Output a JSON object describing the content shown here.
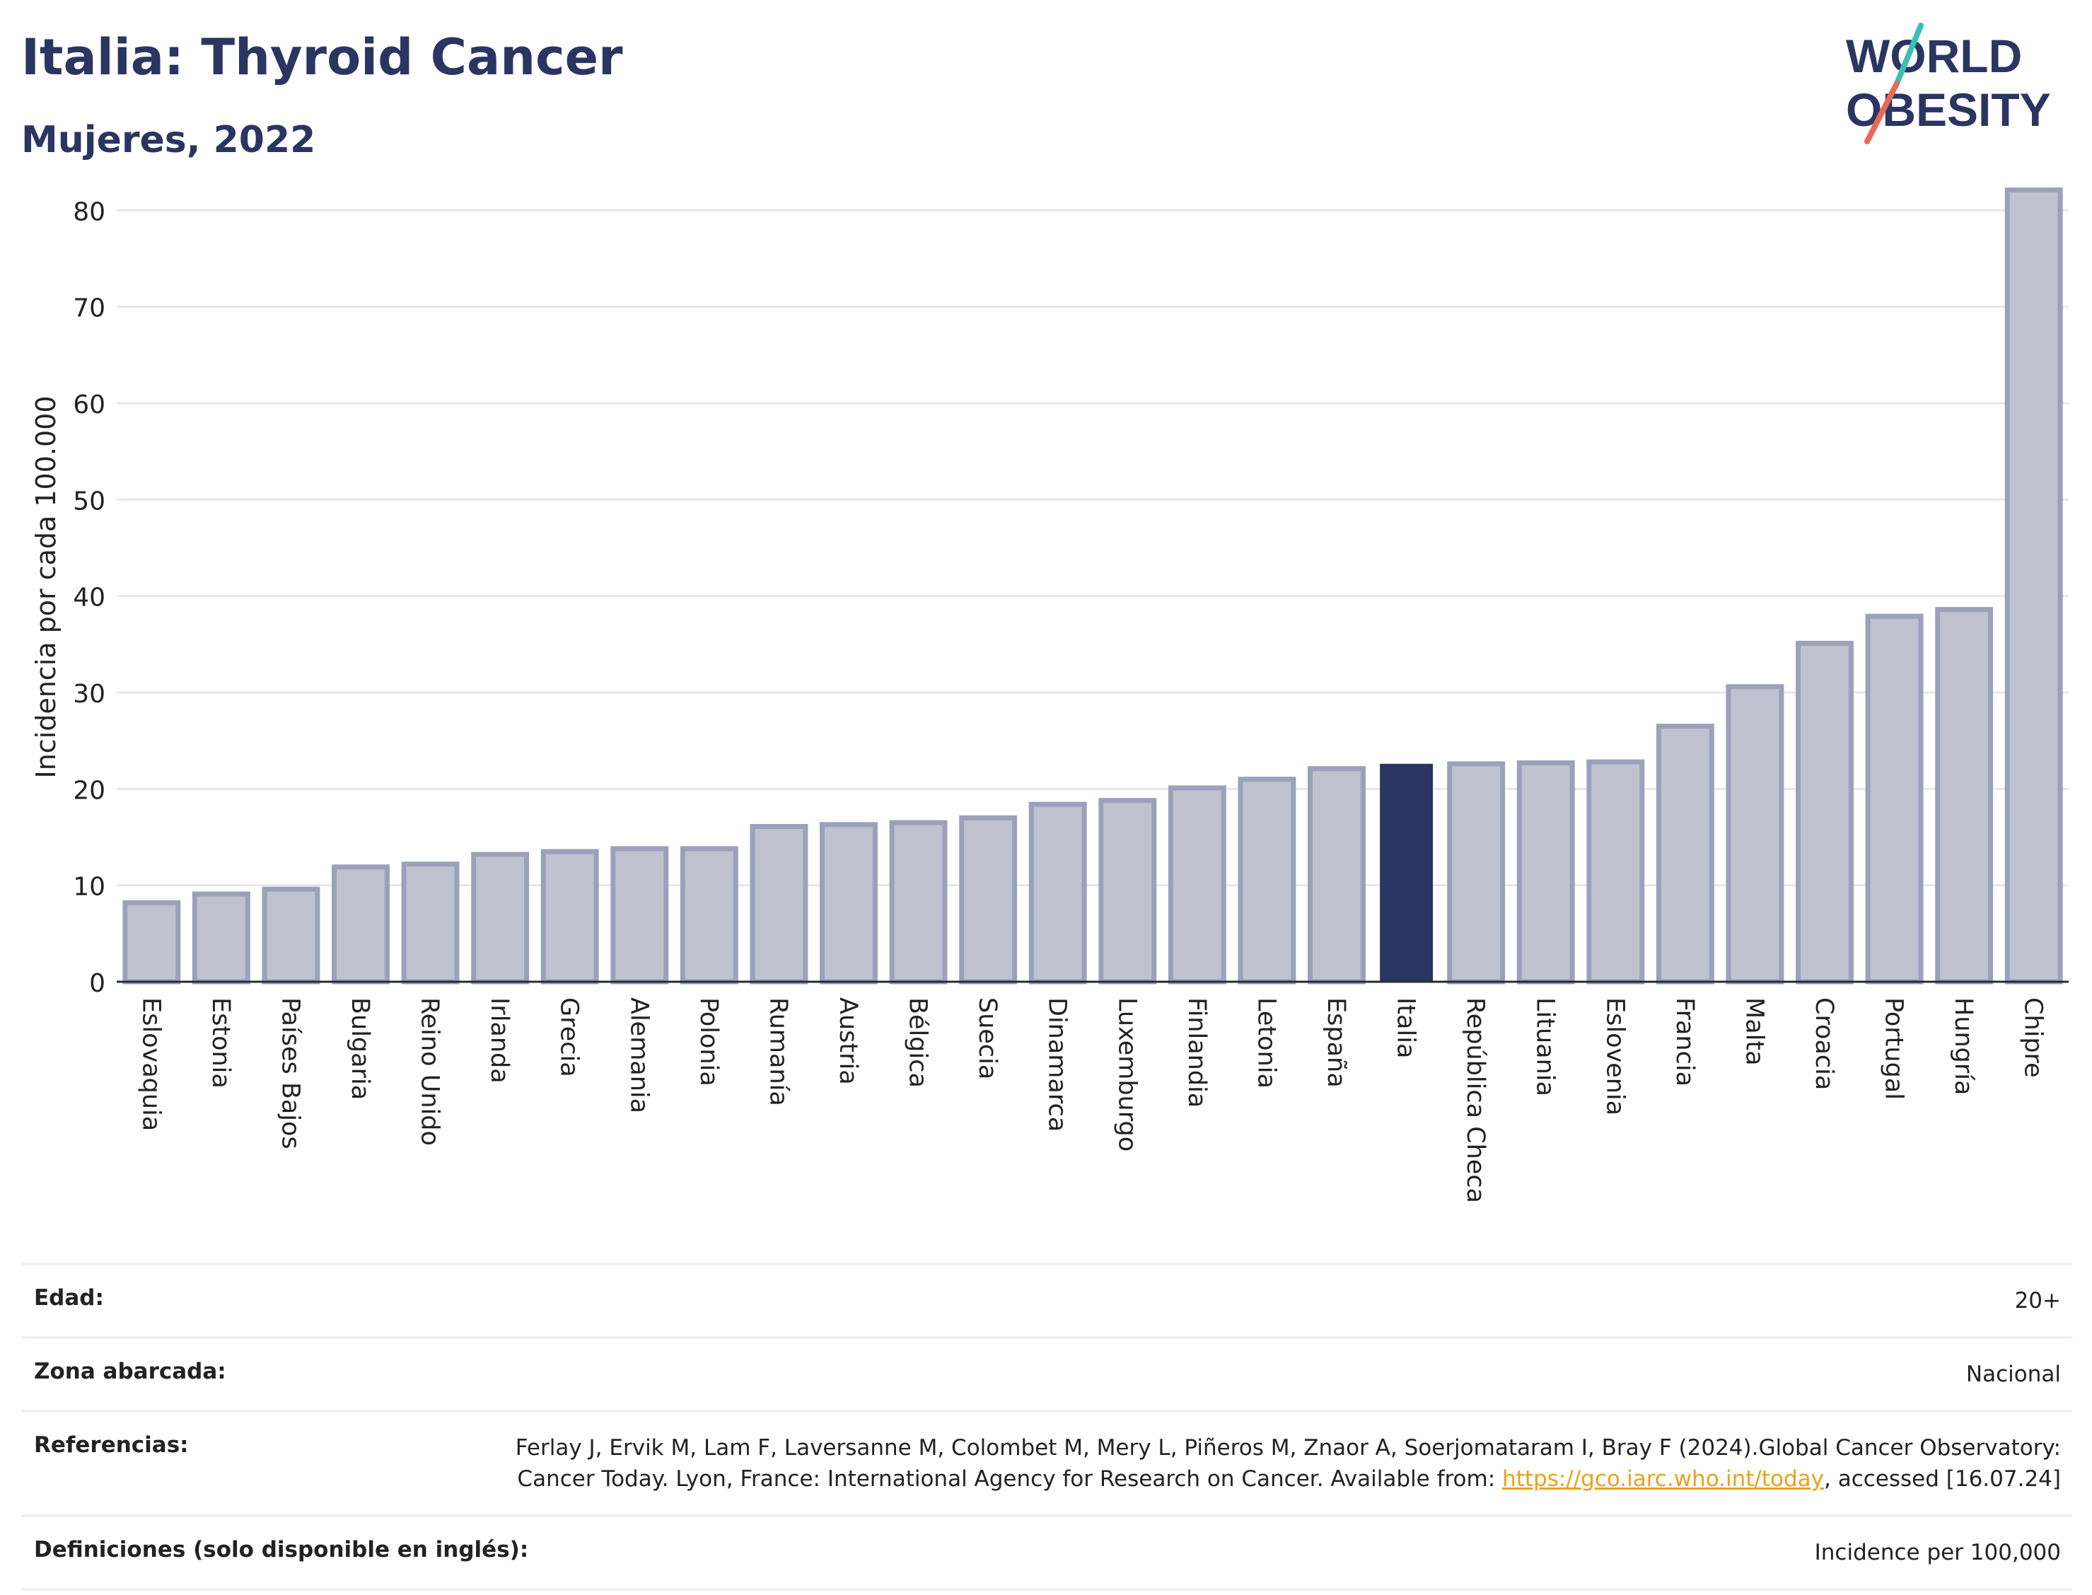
{
  "header": {
    "title": "Italia: Thyroid Cancer",
    "subtitle": "Mujeres, 2022"
  },
  "logo": {
    "line1": "WORLD",
    "line2": "OBESITY"
  },
  "colors": {
    "bar": "#bfc2cf",
    "bar_outline": "#9ba1b9",
    "highlight": "#2a3562",
    "grid": "#e6e7ec",
    "title": "#2a3562",
    "link": "#e8a317"
  },
  "chart_data": {
    "type": "bar",
    "ylabel": "Incidencia por cada 100.000",
    "ylim": [
      0,
      82
    ],
    "yticks": [
      0,
      10,
      20,
      30,
      40,
      50,
      60,
      70,
      80
    ],
    "grid": true,
    "highlight": "Italia",
    "categories": [
      "Eslovaquia",
      "Estonia",
      "Países Bajos",
      "Bulgaria",
      "Reino Unido",
      "Irlanda",
      "Grecia",
      "Alemania",
      "Polonia",
      "Rumanía",
      "Austria",
      "Bélgica",
      "Suecia",
      "Dinamarca",
      "Luxemburgo",
      "Finlandia",
      "Letonia",
      "España",
      "Italia",
      "República Checa",
      "Lituania",
      "Eslovenia",
      "Francia",
      "Malta",
      "Croacia",
      "Portugal",
      "Hungría",
      "Chipre"
    ],
    "values": [
      8.2,
      9.1,
      9.6,
      11.9,
      12.2,
      13.2,
      13.5,
      13.8,
      13.8,
      16.1,
      16.3,
      16.5,
      17.0,
      18.4,
      18.8,
      20.1,
      21.0,
      22.1,
      22.6,
      22.6,
      22.7,
      22.8,
      26.5,
      30.6,
      35.1,
      37.9,
      38.6,
      82.1
    ]
  },
  "meta": [
    {
      "label": "Edad:",
      "value": "20+"
    },
    {
      "label": "Zona abarcada:",
      "value": "Nacional"
    },
    {
      "label": "Referencias:",
      "value_pre": "Ferlay J, Ervik M, Lam F, Laversanne M, Colombet M, Mery L, Piñeros M, Znaor A, Soerjomataram I, Bray F (2024).Global Cancer Observatory: Cancer Today. Lyon, France: International Agency for Research on Cancer. Available from: ",
      "link": "https://gco.iarc.who.int/today",
      "value_post": ", accessed [16.07.24]"
    },
    {
      "label": "Definiciones (solo disponible en inglés):",
      "value": "Incidence per 100,000"
    }
  ]
}
